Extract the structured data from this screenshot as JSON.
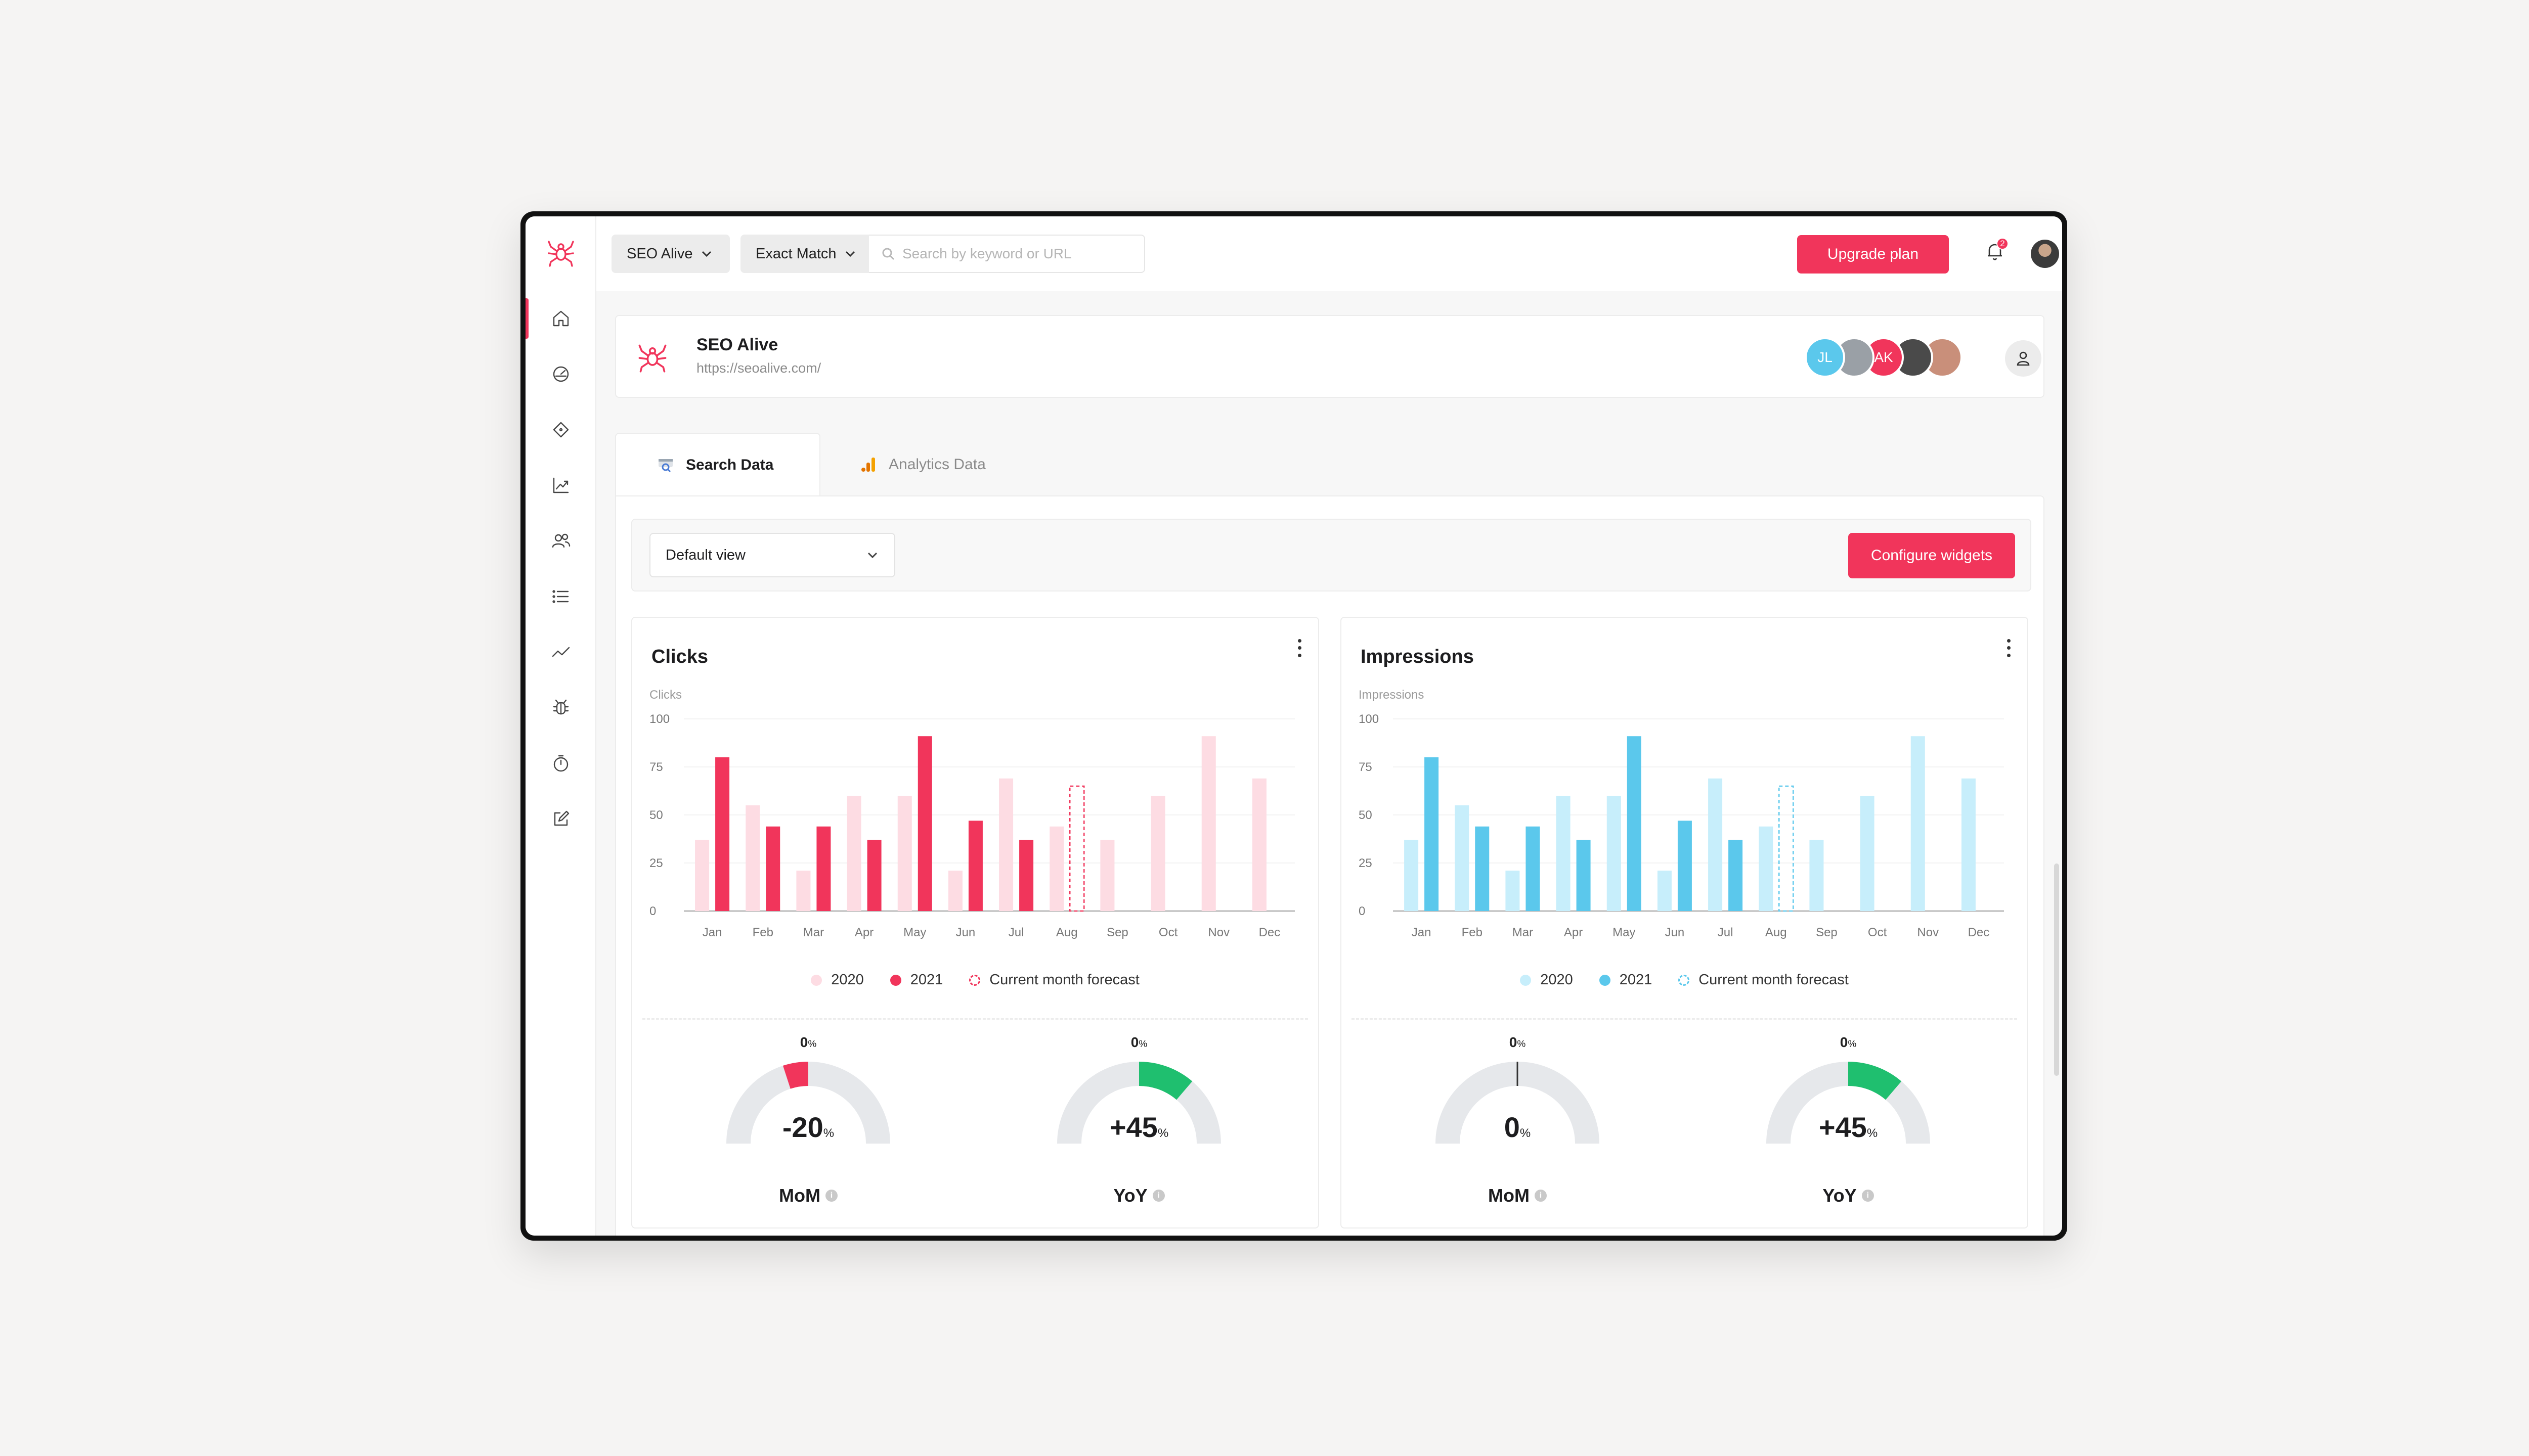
{
  "topbar": {
    "project_select": "SEO Alive",
    "match_select": "Exact Match",
    "search_placeholder": "Search by keyword or URL",
    "upgrade_label": "Upgrade plan",
    "notification_count": "2"
  },
  "sidebar": {
    "items": [
      {
        "icon": "home-icon"
      },
      {
        "icon": "dashboard-icon"
      },
      {
        "icon": "target-icon"
      },
      {
        "icon": "trend-chart-icon"
      },
      {
        "icon": "users-icon"
      },
      {
        "icon": "list-icon"
      },
      {
        "icon": "activity-icon"
      },
      {
        "icon": "bug-icon"
      },
      {
        "icon": "timer-icon"
      },
      {
        "icon": "edit-icon"
      }
    ]
  },
  "project": {
    "name": "SEO Alive",
    "url": "https://seoalive.com/",
    "avatars": [
      {
        "initials": "JL",
        "color": "#5bc8ec"
      },
      {
        "initials": "",
        "color": "#9aa0a6"
      },
      {
        "initials": "AK",
        "color": "#f1355b"
      },
      {
        "initials": "",
        "color": "#4a4a4a"
      },
      {
        "initials": "",
        "color": "#c98f7a"
      }
    ]
  },
  "tabs": [
    {
      "label": "Search Data",
      "active": true
    },
    {
      "label": "Analytics Data",
      "active": false
    }
  ],
  "toolbar": {
    "view_select": "Default view",
    "configure_label": "Configure widgets"
  },
  "widgets": [
    {
      "title": "Clicks",
      "legend": [
        "2020",
        "2021",
        "Current month forecast"
      ],
      "colors": {
        "light": "#fddce3",
        "dark": "#f1355b",
        "forecast": "#f1355b"
      },
      "gauges": [
        {
          "top": "0",
          "unit": "%",
          "value": "-20",
          "label": "MoM",
          "percent": -20,
          "color": "#f1355b"
        },
        {
          "top": "0",
          "unit": "%",
          "value": "+45",
          "label": "YoY",
          "percent": 45,
          "color": "#1fbf6f"
        }
      ]
    },
    {
      "title": "Impressions",
      "legend": [
        "2020",
        "2021",
        "Current month forecast"
      ],
      "colors": {
        "light": "#c7eefb",
        "dark": "#5bc8ec",
        "forecast": "#5bc8ec"
      },
      "gauges": [
        {
          "top": "0",
          "unit": "%",
          "value": "0",
          "label": "MoM",
          "percent": 0,
          "color": "#333333"
        },
        {
          "top": "0",
          "unit": "%",
          "value": "+45",
          "label": "YoY",
          "percent": 45,
          "color": "#1fbf6f"
        }
      ]
    }
  ],
  "chart_data": [
    {
      "type": "bar",
      "title": "Clicks",
      "ylabel": "Clicks",
      "ylim": [
        0,
        100
      ],
      "yticks": [
        0,
        25,
        50,
        75,
        100
      ],
      "categories": [
        "Jan",
        "Feb",
        "Mar",
        "Apr",
        "May",
        "Jun",
        "Jul",
        "Aug",
        "Sep",
        "Oct",
        "Nov",
        "Dec"
      ],
      "series": [
        {
          "name": "2020",
          "values": [
            37,
            55,
            21,
            60,
            60,
            21,
            69,
            44,
            37,
            60,
            91,
            69
          ]
        },
        {
          "name": "2021",
          "values": [
            80,
            44,
            44,
            37,
            91,
            47,
            37,
            null,
            null,
            null,
            null,
            null
          ]
        },
        {
          "name": "Current month forecast",
          "values": [
            null,
            null,
            null,
            null,
            null,
            null,
            null,
            65,
            null,
            null,
            null,
            null
          ]
        }
      ]
    },
    {
      "type": "bar",
      "title": "Impressions",
      "ylabel": "Impressions",
      "ylim": [
        0,
        100
      ],
      "yticks": [
        0,
        25,
        50,
        75,
        100
      ],
      "categories": [
        "Jan",
        "Feb",
        "Mar",
        "Apr",
        "May",
        "Jun",
        "Jul",
        "Aug",
        "Sep",
        "Oct",
        "Nov",
        "Dec"
      ],
      "series": [
        {
          "name": "2020",
          "values": [
            37,
            55,
            21,
            60,
            60,
            21,
            69,
            44,
            37,
            60,
            91,
            69
          ]
        },
        {
          "name": "2021",
          "values": [
            80,
            44,
            44,
            37,
            91,
            47,
            37,
            null,
            null,
            null,
            null,
            null
          ]
        },
        {
          "name": "Current month forecast",
          "values": [
            null,
            null,
            null,
            null,
            null,
            null,
            null,
            65,
            null,
            null,
            null,
            null
          ]
        }
      ]
    }
  ]
}
